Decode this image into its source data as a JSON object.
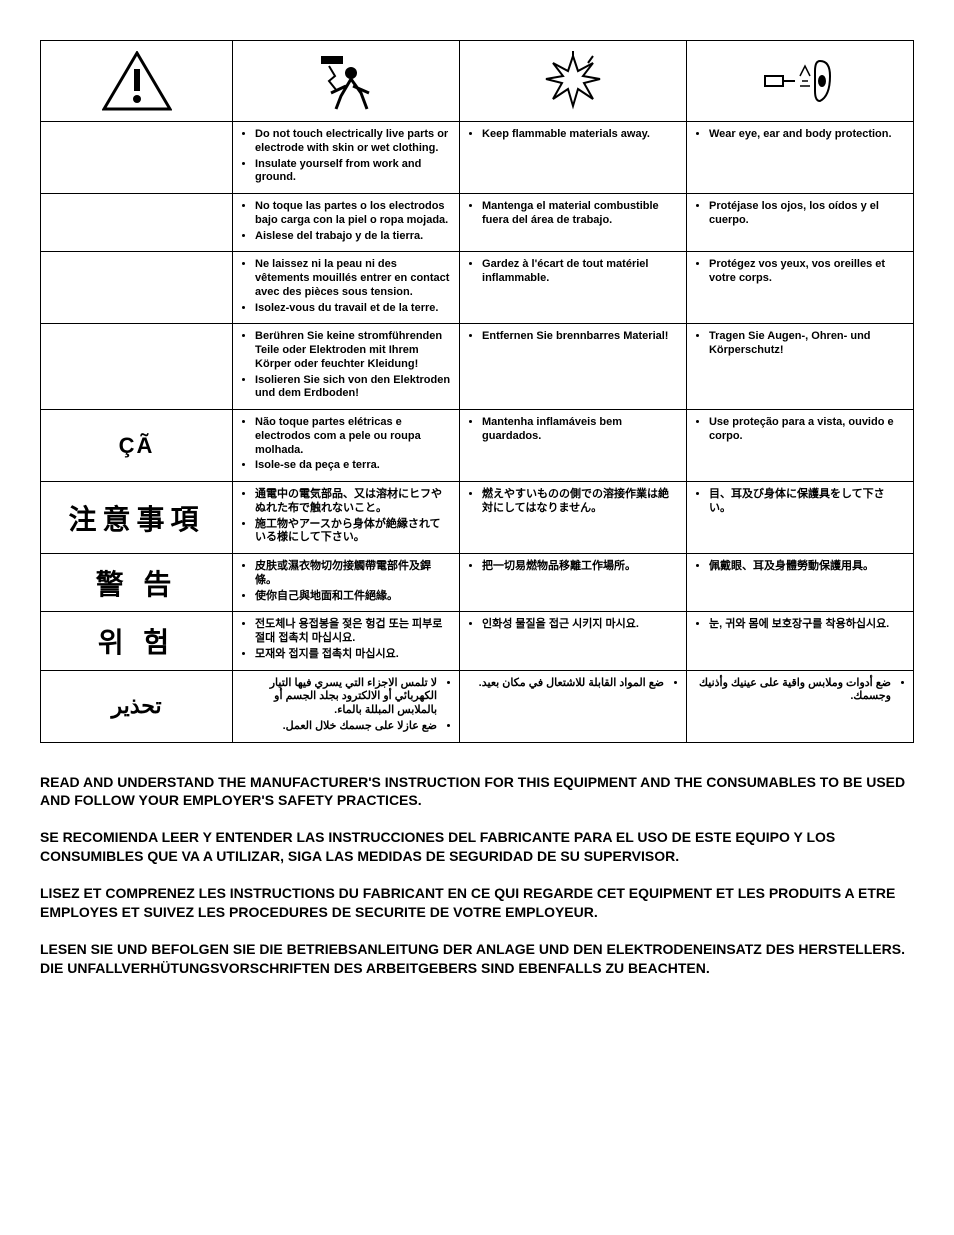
{
  "icons": {
    "col1_alt": "warning-triangle",
    "col2_alt": "electric-shock",
    "col3_alt": "explosion",
    "col4_alt": "eye-ear-protection"
  },
  "rows": [
    {
      "label": "",
      "label_class": "",
      "col2": [
        "Do not touch electrically live parts or electrode with skin or wet clothing.",
        "Insulate yourself from work and ground."
      ],
      "col3": [
        "Keep flammable materials away."
      ],
      "col4": [
        "Wear eye, ear and body protection."
      ]
    },
    {
      "label": "",
      "label_class": "",
      "col2": [
        "No toque las partes o los electrodos bajo carga con la piel o ropa mojada.",
        "Aislese del trabajo y de la tierra."
      ],
      "col3": [
        "Mantenga el material combustible fuera del área de trabajo."
      ],
      "col4": [
        "Protéjase los ojos, los oídos y el cuerpo."
      ]
    },
    {
      "label": "",
      "label_class": "",
      "col2": [
        "Ne laissez ni la peau ni des vêtements mouillés entrer en contact avec des pièces sous tension.",
        "Isolez-vous du travail et de la terre."
      ],
      "col3": [
        "Gardez à l'écart de tout matériel inflammable."
      ],
      "col4": [
        "Protégez vos yeux, vos oreilles et votre corps."
      ]
    },
    {
      "label": "",
      "label_class": "",
      "col2": [
        "Berühren Sie keine stromführenden Teile oder Elektroden mit Ihrem Körper oder feuchter Kleidung!",
        "Isolieren Sie sich von den Elektroden und dem Erdboden!"
      ],
      "col3": [
        "Entfernen Sie brennbarres Material!"
      ],
      "col4": [
        "Tragen Sie Augen-, Ohren- und Körperschutz!"
      ]
    },
    {
      "label": "ÇÃ",
      "label_class": "small",
      "col2": [
        "Não toque partes elétricas e electrodos com a pele ou roupa molhada.",
        "Isole-se da peça e terra."
      ],
      "col3": [
        "Mantenha inflamáveis bem guardados."
      ],
      "col4": [
        "Use proteção para a vista, ouvido e corpo."
      ]
    },
    {
      "label": "注意事項",
      "label_class": "",
      "col2": [
        "通電中の電気部品、又は溶材にヒフやぬれた布で触れないこと。",
        "施工物やアースから身体が絶縁されている様にして下さい。"
      ],
      "col3": [
        "燃えやすいものの側での溶接作業は絶対にしてはなりません。"
      ],
      "col4": [
        "目、耳及び身体に保護具をして下さい。"
      ]
    },
    {
      "label": "警 告",
      "label_class": "",
      "col2": [
        "皮肤或濕衣物切勿接觸帶電部件及銲條。",
        "使你自己與地面和工件絕緣。"
      ],
      "col3": [
        "把一切易燃物品移離工作場所。"
      ],
      "col4": [
        "佩戴眼、耳及身體勞動保護用具。"
      ]
    },
    {
      "label": "위 험",
      "label_class": "",
      "col2": [
        "전도체나 용접봉을 젖은 헝겁 또는 피부로 절대 접촉치 마십시요.",
        "모재와 접지를 접촉치 마십시요."
      ],
      "col3": [
        "인화성 물질을 접근 시키지 마시요."
      ],
      "col4": [
        "눈, 귀와 몸에 보호장구를 착용하십시요."
      ]
    },
    {
      "label": "تحذير",
      "label_class": "small ar",
      "rtl": true,
      "col2": [
        "لا تلمس الاجزاء التي يسري فيها التيار الكهربائي أو الالكترود بجلد الجسم أو بالملابس المبللة بالماء.",
        "ضع عازلا على جسمك خلال العمل."
      ],
      "col3": [
        "ضع المواد القابلة للاشتعال في مكان بعيد."
      ],
      "col4": [
        "ضع أدوات وملابس واقية على عينيك وأذنيك وجسمك."
      ]
    }
  ],
  "footer": [
    "READ AND UNDERSTAND THE MANUFACTURER'S INSTRUCTION FOR THIS EQUIPMENT AND THE CONSUMABLES TO BE USED AND FOLLOW YOUR EMPLOYER'S SAFETY PRACTICES.",
    "SE RECOMIENDA LEER Y ENTENDER LAS INSTRUCCIONES DEL FABRICANTE PARA EL USO DE ESTE EQUIPO Y LOS CONSUMIBLES QUE VA A UTILIZAR, SIGA LAS MEDIDAS DE SEGURIDAD DE SU SUPERVISOR.",
    "LISEZ ET COMPRENEZ LES INSTRUCTIONS DU FABRICANT EN CE QUI REGARDE CET EQUIPMENT ET LES PRODUITS A ETRE EMPLOYES ET SUIVEZ LES PROCEDURES DE SECURITE DE VOTRE EMPLOYEUR.",
    "LESEN SIE UND BEFOLGEN SIE DIE BETRIEBSANLEITUNG DER ANLAGE UND DEN ELEKTRODENEINSATZ DES HERSTELLERS. DIE UNFALLVERHÜTUNGSVORSCHRIFTEN DES ARBEITGEBERS SIND EBENFALLS ZU BEACHTEN."
  ],
  "colors": {
    "border": "#000000",
    "text": "#000000",
    "background": "#ffffff"
  }
}
